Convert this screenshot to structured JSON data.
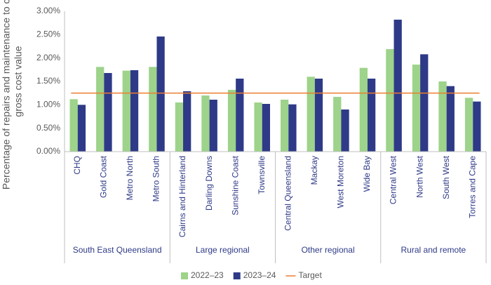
{
  "chart_data": {
    "type": "bar",
    "y_label": [
      "Percentage of repairs and maintenance to closing",
      "gross cost value"
    ],
    "groups": [
      {
        "name": "South East Queensland",
        "categories": [
          "CHQ",
          "Gold Coast",
          "Metro North",
          "Metro South"
        ]
      },
      {
        "name": "Large regional",
        "categories": [
          "Cairns and Hinterland",
          "Darling Downs",
          "Sunshine Coast",
          "Townsville"
        ]
      },
      {
        "name": "Other regional",
        "categories": [
          "Central Queensland",
          "Mackay",
          "West Moreton",
          "Wide Bay"
        ]
      },
      {
        "name": "Rural and remote",
        "categories": [
          "Central West",
          "North West",
          "South West",
          "Torres and Cape"
        ]
      }
    ],
    "series": [
      {
        "name": "2022–23",
        "color": "#9dd38a",
        "values": [
          1.12,
          1.81,
          1.73,
          1.81,
          1.05,
          1.2,
          1.32,
          1.05,
          1.11,
          1.6,
          1.17,
          1.79,
          2.19,
          1.86,
          1.5,
          1.15
        ]
      },
      {
        "name": "2023–24",
        "color": "#2e3a87",
        "values": [
          1.0,
          1.68,
          1.74,
          2.46,
          1.29,
          1.11,
          1.56,
          1.02,
          1.01,
          1.56,
          0.9,
          1.56,
          2.82,
          2.08,
          1.4,
          1.07
        ]
      }
    ],
    "target": {
      "name": "Target",
      "value": 1.25,
      "color": "#ed7d31"
    },
    "ylim": [
      0,
      3
    ],
    "yticks": [
      {
        "value": 0,
        "label": "0.00%"
      },
      {
        "value": 0.5,
        "label": "0.50%"
      },
      {
        "value": 1,
        "label": "1.00%"
      },
      {
        "value": 1.5,
        "label": "1.50%"
      },
      {
        "value": 2,
        "label": "2.00%"
      },
      {
        "value": 2.5,
        "label": "2.50%"
      },
      {
        "value": 3,
        "label": "3.00%"
      }
    ],
    "grid": false,
    "legend": "bottom"
  }
}
